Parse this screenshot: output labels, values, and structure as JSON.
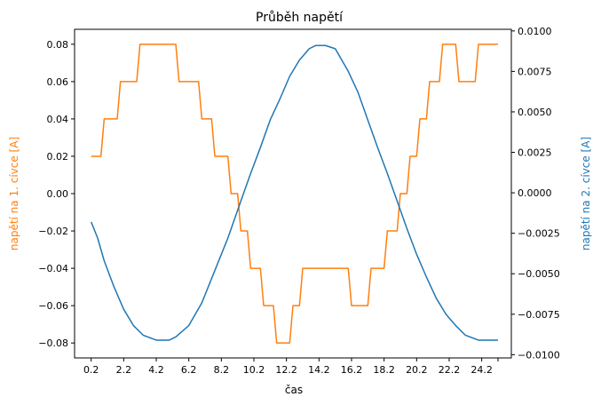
{
  "chart_data": {
    "type": "line",
    "title": "Průběh napětí",
    "xlabel": "čas",
    "ylabel_left": "napětí na 1. cívce [A]",
    "ylabel_right": "napětí na 2. cívce [A]",
    "xlim": [
      -0.82,
      26.02
    ],
    "ylim_left": [
      -0.088,
      0.088
    ],
    "ylim_right": [
      -0.0102,
      0.0101
    ],
    "x_ticks": [
      0.2,
      2.2,
      4.2,
      6.2,
      8.2,
      10.2,
      12.2,
      14.2,
      16.2,
      18.2,
      20.2,
      22.2,
      24.2,
      25.2
    ],
    "x_tick_labels": [
      "0.2",
      "2.2",
      "4.2",
      "6.2",
      "8.2",
      "10.2",
      "12.2",
      "14.2",
      "16.2",
      "18.2",
      "20.2",
      "22.2",
      "24.2",
      ""
    ],
    "y_left_ticks": [
      -0.08,
      -0.06,
      -0.04,
      -0.02,
      0.0,
      0.02,
      0.04,
      0.06,
      0.08
    ],
    "y_left_tick_labels": [
      "−0.08",
      "−0.06",
      "−0.04",
      "−0.02",
      "0.00",
      "0.02",
      "0.04",
      "0.06",
      "0.08"
    ],
    "y_right_ticks": [
      -0.01,
      -0.0075,
      -0.005,
      -0.0025,
      0.0,
      0.0025,
      0.005,
      0.0075,
      0.01
    ],
    "y_right_tick_labels": [
      "−0.0100",
      "−0.0075",
      "−0.0050",
      "−0.0025",
      "0.0000",
      "0.0025",
      "0.0050",
      "0.0075",
      "0.0100"
    ],
    "grid": false,
    "series": [
      {
        "axis": "left",
        "color": "#ff7f0e",
        "x": [
          0.2,
          0.8,
          1.0,
          1.8,
          2.0,
          3.0,
          3.2,
          5.4,
          5.6,
          6.8,
          7.0,
          7.6,
          7.8,
          8.6,
          8.8,
          9.2,
          9.4,
          9.8,
          10.0,
          10.6,
          10.8,
          11.4,
          11.6,
          12.4,
          12.6,
          13.0,
          13.2,
          16.0,
          16.2,
          17.2,
          17.4,
          18.2,
          18.4,
          19.0,
          19.2,
          19.6,
          19.8,
          20.2,
          20.4,
          20.8,
          21.0,
          21.6,
          21.8,
          22.6,
          22.8,
          23.8,
          24.0,
          25.2
        ],
        "y": [
          0.02,
          0.02,
          0.04,
          0.04,
          0.06,
          0.06,
          0.08,
          0.08,
          0.06,
          0.06,
          0.04,
          0.04,
          0.02,
          0.02,
          0.0,
          0.0,
          -0.02,
          -0.02,
          -0.04,
          -0.04,
          -0.06,
          -0.06,
          -0.08,
          -0.08,
          -0.06,
          -0.06,
          -0.04,
          -0.04,
          -0.06,
          -0.06,
          -0.04,
          -0.04,
          -0.02,
          -0.02,
          0.0,
          0.0,
          0.02,
          0.02,
          0.04,
          0.04,
          0.06,
          0.06,
          0.08,
          0.08,
          0.06,
          0.06,
          0.08,
          0.08
        ]
      },
      {
        "axis": "right",
        "color": "#1f77b4",
        "x": [
          0.2,
          0.6,
          1.0,
          1.6,
          2.2,
          2.8,
          3.4,
          4.2,
          5.0,
          5.4,
          6.2,
          7.0,
          7.8,
          8.6,
          9.4,
          10.0,
          10.6,
          11.2,
          11.8,
          12.4,
          13.0,
          13.6,
          14.0,
          14.6,
          15.2,
          15.6,
          16.0,
          16.6,
          17.2,
          17.8,
          18.4,
          19.0,
          19.6,
          20.2,
          20.8,
          21.4,
          22.0,
          22.6,
          23.2,
          24.0,
          24.6,
          25.2
        ],
        "y": [
          -0.0018,
          -0.0028,
          -0.0042,
          -0.0058,
          -0.0072,
          -0.0082,
          -0.0088,
          -0.0091,
          -0.0091,
          -0.0089,
          -0.0082,
          -0.0068,
          -0.0048,
          -0.0028,
          -0.0005,
          0.0012,
          0.0028,
          0.0045,
          0.0058,
          0.0072,
          0.0082,
          0.0089,
          0.0091,
          0.0091,
          0.0089,
          0.0082,
          0.0075,
          0.0062,
          0.0045,
          0.0028,
          0.0012,
          -0.0005,
          -0.0022,
          -0.0038,
          -0.0052,
          -0.0065,
          -0.0075,
          -0.0082,
          -0.0088,
          -0.0091,
          -0.0091,
          -0.0091
        ]
      }
    ]
  }
}
